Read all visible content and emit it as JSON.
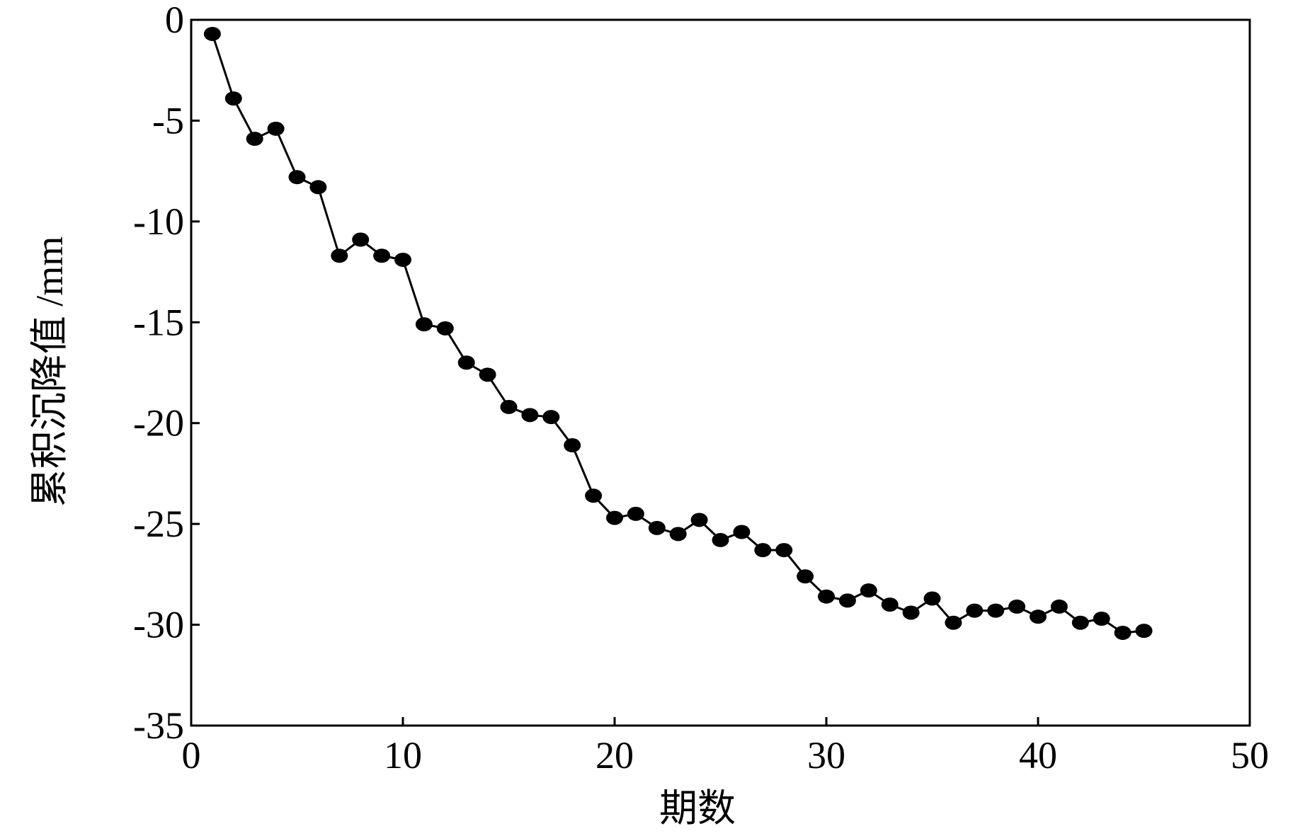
{
  "chart_data": {
    "type": "line",
    "xlabel": "期数",
    "ylabel": "累积沉降值 /mm",
    "x": [
      1,
      2,
      3,
      4,
      5,
      6,
      7,
      8,
      9,
      10,
      11,
      12,
      13,
      14,
      15,
      16,
      17,
      18,
      19,
      20,
      21,
      22,
      23,
      24,
      25,
      26,
      27,
      28,
      29,
      30,
      31,
      32,
      33,
      34,
      35,
      36,
      37,
      38,
      39,
      40,
      41,
      42,
      43,
      44,
      45
    ],
    "series": [
      {
        "color": "#000000",
        "values": [
          -0.7,
          -3.9,
          -5.9,
          -5.4,
          -7.8,
          -8.3,
          -11.7,
          -10.9,
          -11.7,
          -11.9,
          -15.1,
          -15.3,
          -17.0,
          -17.6,
          -19.2,
          -19.6,
          -19.7,
          -21.1,
          -23.6,
          -24.7,
          -24.5,
          -25.2,
          -25.5,
          -24.8,
          -25.8,
          -25.4,
          -26.3,
          -26.3,
          -27.6,
          -28.6,
          -28.8,
          -28.3,
          -29.0,
          -29.4,
          -28.7,
          -29.9,
          -29.3,
          -29.3,
          -29.1,
          -29.6,
          -29.1,
          -29.9,
          -29.7,
          -30.4,
          -30.3
        ]
      }
    ],
    "xlim": [
      0,
      50
    ],
    "xticks": [
      0,
      10,
      20,
      30,
      40,
      50
    ],
    "ylim": [
      -35,
      0
    ],
    "yticks": [
      0,
      -5,
      -10,
      -15,
      -20,
      -25,
      -30,
      -35
    ],
    "grid": false
  }
}
